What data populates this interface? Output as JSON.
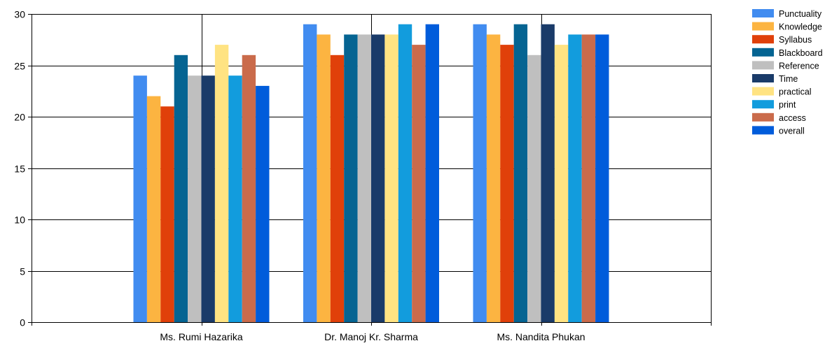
{
  "chart_data": {
    "type": "bar",
    "title": "",
    "xlabel": "",
    "ylabel": "",
    "ylim": [
      0,
      30
    ],
    "yticks": [
      0,
      5,
      10,
      15,
      20,
      25,
      30
    ],
    "grid": true,
    "legend_position": "top-right",
    "categories": [
      "Ms. Rumi Hazarika",
      "Dr. Manoj Kr. Sharma",
      "Ms. Nandita Phukan"
    ],
    "series": [
      {
        "name": "Punctuality",
        "color": "#418CF0",
        "values": [
          24,
          29,
          29
        ]
      },
      {
        "name": "Knowledge",
        "color": "#FCB441",
        "values": [
          22,
          28,
          28
        ]
      },
      {
        "name": "Syllabus",
        "color": "#E0400A",
        "values": [
          21,
          26,
          27
        ]
      },
      {
        "name": "Blackboard",
        "color": "#056492",
        "values": [
          26,
          28,
          29
        ]
      },
      {
        "name": "Reference",
        "color": "#BFBFBF",
        "values": [
          24,
          28,
          26
        ]
      },
      {
        "name": "Time",
        "color": "#1A3B69",
        "values": [
          24,
          28,
          29
        ]
      },
      {
        "name": "practical",
        "color": "#FFE382",
        "values": [
          27,
          28,
          27
        ]
      },
      {
        "name": "print",
        "color": "#129CDD",
        "values": [
          24,
          29,
          28
        ]
      },
      {
        "name": "access",
        "color": "#CA6B4B",
        "values": [
          26,
          27,
          28
        ]
      },
      {
        "name": "overall",
        "color": "#005CDB",
        "values": [
          23,
          29,
          28
        ]
      }
    ]
  }
}
